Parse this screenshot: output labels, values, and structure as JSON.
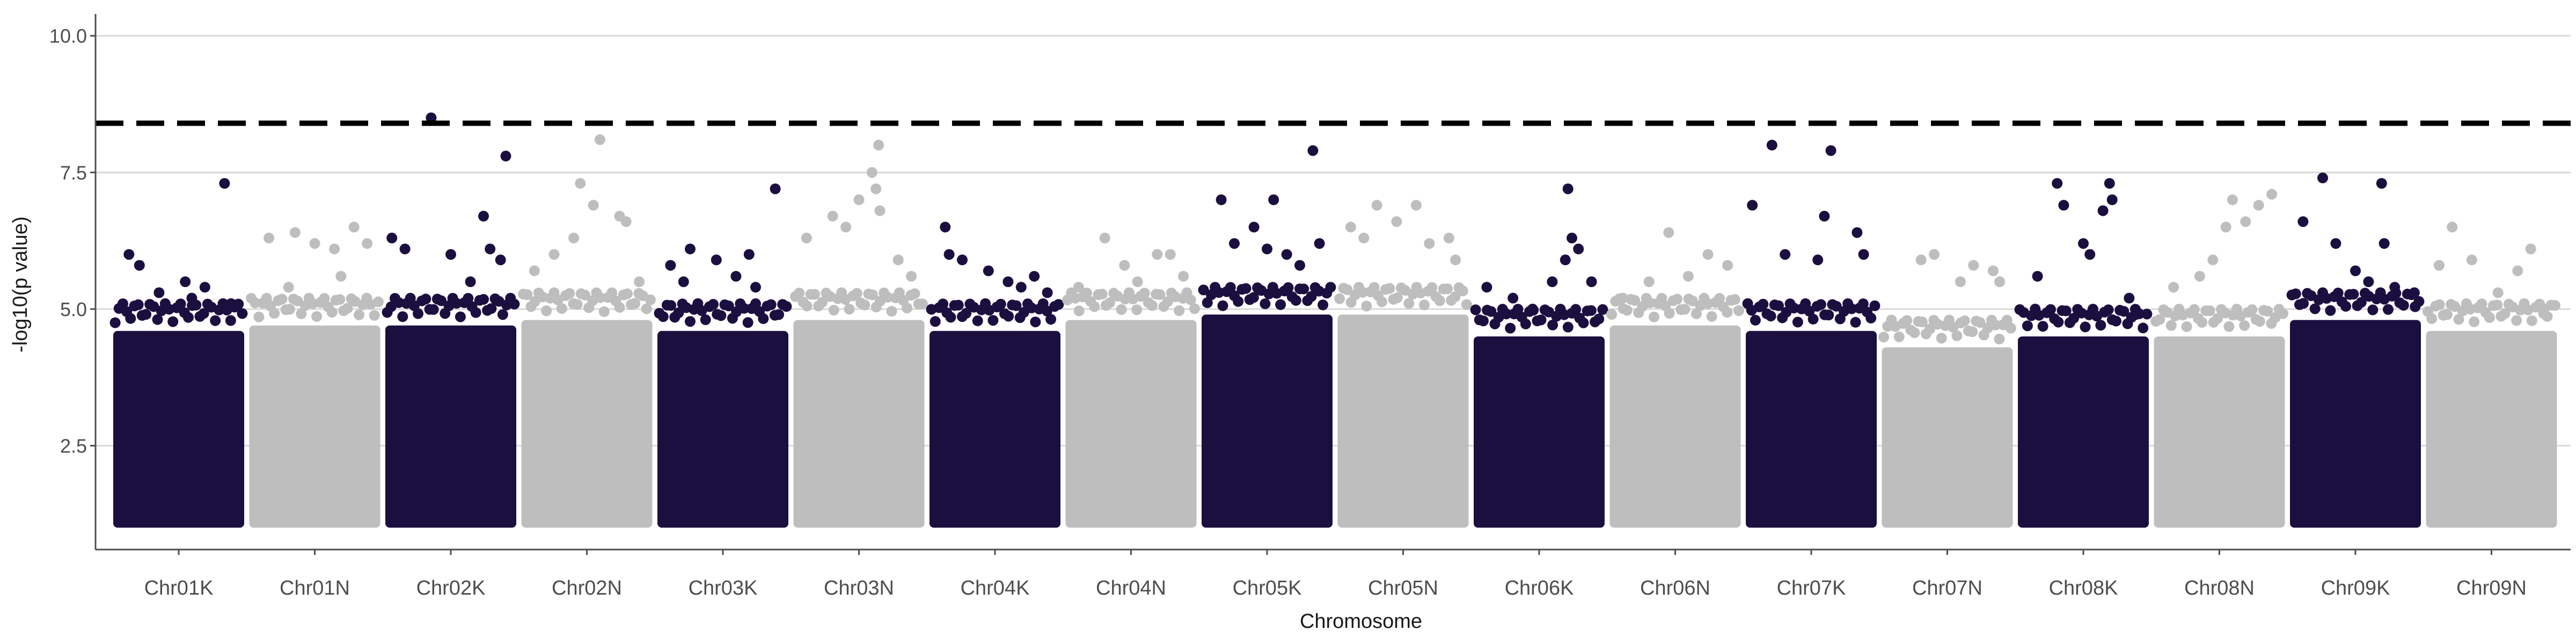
{
  "chart_data": {
    "type": "scatter",
    "subtype": "manhattan",
    "title": "",
    "xlabel": "Chromosome",
    "ylabel": "-log10(p value)",
    "ylim": [
      0.6,
      10.4
    ],
    "yticks": [
      2.5,
      5.0,
      7.5,
      10.0
    ],
    "ytick_labels": [
      "2.5",
      "5.0",
      "7.5",
      "10.0"
    ],
    "grid": "horizontal major lines only",
    "threshold": {
      "value": 8.4,
      "style": "dashed",
      "color": "#000000"
    },
    "colors": {
      "odd": "#1b0f40",
      "even": "#bebebe",
      "grid": "#d9d9d9",
      "axis": "#4d4d4d"
    },
    "band_bottom": 1.0,
    "categories": [
      "Chr01K",
      "Chr01N",
      "Chr02K",
      "Chr02N",
      "Chr03K",
      "Chr03N",
      "Chr04K",
      "Chr04N",
      "Chr05K",
      "Chr05N",
      "Chr06K",
      "Chr06N",
      "Chr07K",
      "Chr07N",
      "Chr08K",
      "Chr08N",
      "Chr09K",
      "Chr09N"
    ],
    "series": [
      {
        "chr": "Chr01K",
        "band_top": 4.6,
        "points": [
          [
            0.12,
            6.0
          ],
          [
            0.2,
            5.8
          ],
          [
            0.35,
            5.3
          ],
          [
            0.55,
            5.5
          ],
          [
            0.7,
            5.4
          ],
          [
            0.85,
            7.3
          ],
          [
            0.6,
            5.2
          ],
          [
            0.9,
            5.1
          ]
        ]
      },
      {
        "chr": "Chr01N",
        "band_top": 4.7,
        "points": [
          [
            0.15,
            6.3
          ],
          [
            0.35,
            6.4
          ],
          [
            0.5,
            6.2
          ],
          [
            0.65,
            6.1
          ],
          [
            0.8,
            6.5
          ],
          [
            0.9,
            6.2
          ],
          [
            0.3,
            5.4
          ],
          [
            0.7,
            5.6
          ]
        ]
      },
      {
        "chr": "Chr02K",
        "band_top": 4.7,
        "points": [
          [
            0.05,
            6.3
          ],
          [
            0.15,
            6.1
          ],
          [
            0.35,
            8.5
          ],
          [
            0.5,
            6.0
          ],
          [
            0.65,
            5.5
          ],
          [
            0.75,
            6.7
          ],
          [
            0.8,
            6.1
          ],
          [
            0.92,
            7.8
          ],
          [
            0.88,
            5.9
          ]
        ]
      },
      {
        "chr": "Chr02N",
        "band_top": 4.8,
        "points": [
          [
            0.1,
            5.7
          ],
          [
            0.25,
            6.0
          ],
          [
            0.4,
            6.3
          ],
          [
            0.45,
            7.3
          ],
          [
            0.55,
            6.9
          ],
          [
            0.6,
            8.1
          ],
          [
            0.75,
            6.7
          ],
          [
            0.8,
            6.6
          ],
          [
            0.9,
            5.5
          ]
        ]
      },
      {
        "chr": "Chr03K",
        "band_top": 4.6,
        "points": [
          [
            0.1,
            5.8
          ],
          [
            0.2,
            5.5
          ],
          [
            0.25,
            6.1
          ],
          [
            0.45,
            5.9
          ],
          [
            0.6,
            5.6
          ],
          [
            0.7,
            6.0
          ],
          [
            0.75,
            5.4
          ],
          [
            0.9,
            7.2
          ]
        ]
      },
      {
        "chr": "Chr03N",
        "band_top": 4.8,
        "points": [
          [
            0.1,
            6.3
          ],
          [
            0.3,
            6.7
          ],
          [
            0.4,
            6.5
          ],
          [
            0.5,
            7.0
          ],
          [
            0.6,
            7.5
          ],
          [
            0.65,
            8.0
          ],
          [
            0.63,
            7.2
          ],
          [
            0.66,
            6.8
          ],
          [
            0.8,
            5.9
          ],
          [
            0.9,
            5.6
          ]
        ]
      },
      {
        "chr": "Chr04K",
        "band_top": 4.6,
        "points": [
          [
            0.12,
            6.5
          ],
          [
            0.15,
            6.0
          ],
          [
            0.25,
            5.9
          ],
          [
            0.45,
            5.7
          ],
          [
            0.6,
            5.5
          ],
          [
            0.7,
            5.4
          ],
          [
            0.8,
            5.6
          ],
          [
            0.9,
            5.3
          ]
        ]
      },
      {
        "chr": "Chr04N",
        "band_top": 4.8,
        "points": [
          [
            0.1,
            5.4
          ],
          [
            0.3,
            6.3
          ],
          [
            0.45,
            5.8
          ],
          [
            0.55,
            5.5
          ],
          [
            0.7,
            6.0
          ],
          [
            0.8,
            6.0
          ],
          [
            0.9,
            5.6
          ]
        ]
      },
      {
        "chr": "Chr05K",
        "band_top": 4.9,
        "points": [
          [
            0.15,
            7.0
          ],
          [
            0.25,
            6.2
          ],
          [
            0.4,
            6.5
          ],
          [
            0.5,
            6.1
          ],
          [
            0.55,
            7.0
          ],
          [
            0.65,
            6.0
          ],
          [
            0.75,
            5.8
          ],
          [
            0.85,
            7.9
          ],
          [
            0.9,
            6.2
          ]
        ]
      },
      {
        "chr": "Chr05N",
        "band_top": 4.9,
        "points": [
          [
            0.1,
            6.5
          ],
          [
            0.2,
            6.3
          ],
          [
            0.3,
            6.9
          ],
          [
            0.45,
            6.6
          ],
          [
            0.6,
            6.9
          ],
          [
            0.7,
            6.2
          ],
          [
            0.85,
            6.3
          ],
          [
            0.9,
            5.9
          ]
        ]
      },
      {
        "chr": "Chr06K",
        "band_top": 4.5,
        "points": [
          [
            0.1,
            5.4
          ],
          [
            0.3,
            5.2
          ],
          [
            0.45,
            5.0
          ],
          [
            0.6,
            5.5
          ],
          [
            0.7,
            5.9
          ],
          [
            0.72,
            7.2
          ],
          [
            0.75,
            6.3
          ],
          [
            0.8,
            6.1
          ],
          [
            0.9,
            5.5
          ]
        ]
      },
      {
        "chr": "Chr06N",
        "band_top": 4.7,
        "points": [
          [
            0.1,
            5.2
          ],
          [
            0.3,
            5.5
          ],
          [
            0.45,
            6.4
          ],
          [
            0.6,
            5.6
          ],
          [
            0.75,
            6.0
          ],
          [
            0.9,
            5.8
          ]
        ]
      },
      {
        "chr": "Chr07K",
        "band_top": 4.6,
        "points": [
          [
            0.05,
            6.9
          ],
          [
            0.2,
            8.0
          ],
          [
            0.3,
            6.0
          ],
          [
            0.55,
            5.9
          ],
          [
            0.6,
            6.7
          ],
          [
            0.65,
            7.9
          ],
          [
            0.85,
            6.4
          ],
          [
            0.9,
            6.0
          ]
        ]
      },
      {
        "chr": "Chr07N",
        "band_top": 4.3,
        "points": [
          [
            0.3,
            5.9
          ],
          [
            0.4,
            6.0
          ],
          [
            0.6,
            5.5
          ],
          [
            0.7,
            5.8
          ],
          [
            0.85,
            5.7
          ],
          [
            0.9,
            5.5
          ]
        ]
      },
      {
        "chr": "Chr08K",
        "band_top": 4.5,
        "points": [
          [
            0.15,
            5.6
          ],
          [
            0.3,
            7.3
          ],
          [
            0.35,
            6.9
          ],
          [
            0.5,
            6.2
          ],
          [
            0.55,
            6.0
          ],
          [
            0.65,
            6.8
          ],
          [
            0.7,
            7.3
          ],
          [
            0.72,
            7.0
          ],
          [
            0.85,
            5.2
          ],
          [
            0.9,
            4.9
          ]
        ]
      },
      {
        "chr": "Chr08N",
        "band_top": 4.5,
        "points": [
          [
            0.15,
            5.4
          ],
          [
            0.35,
            5.6
          ],
          [
            0.55,
            6.5
          ],
          [
            0.6,
            7.0
          ],
          [
            0.7,
            6.6
          ],
          [
            0.8,
            6.9
          ],
          [
            0.9,
            7.1
          ],
          [
            0.45,
            5.9
          ]
        ]
      },
      {
        "chr": "Chr09K",
        "band_top": 4.8,
        "points": [
          [
            0.1,
            6.6
          ],
          [
            0.25,
            7.4
          ],
          [
            0.35,
            6.2
          ],
          [
            0.5,
            5.7
          ],
          [
            0.6,
            5.5
          ],
          [
            0.7,
            7.3
          ],
          [
            0.72,
            6.2
          ],
          [
            0.8,
            5.4
          ],
          [
            0.95,
            5.3
          ]
        ]
      },
      {
        "chr": "Chr09N",
        "band_top": 4.6,
        "points": [
          [
            0.1,
            5.8
          ],
          [
            0.2,
            6.5
          ],
          [
            0.35,
            5.9
          ],
          [
            0.55,
            5.3
          ],
          [
            0.7,
            5.7
          ],
          [
            0.8,
            6.1
          ],
          [
            0.9,
            5.0
          ]
        ]
      }
    ]
  }
}
